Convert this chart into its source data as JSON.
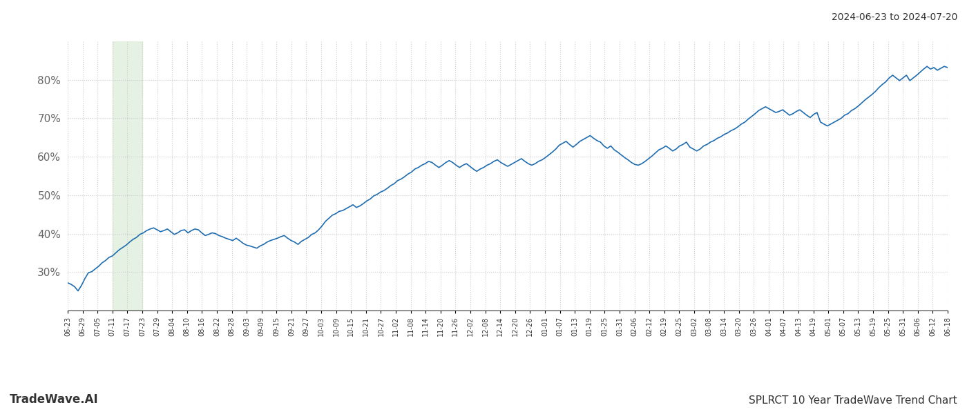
{
  "title_top_right": "2024-06-23 to 2024-07-20",
  "title_bottom_right": "SPLRCT 10 Year TradeWave Trend Chart",
  "title_bottom_left": "TradeWave.AI",
  "line_color": "#1f6cb0",
  "line_width": 1.2,
  "shading_color": "#d4e8d0",
  "shading_alpha": 0.6,
  "background_color": "#ffffff",
  "grid_color": "#cccccc",
  "grid_style": ":",
  "ylim": [
    20,
    90
  ],
  "yticks": [
    30,
    40,
    50,
    60,
    70,
    80
  ],
  "x_tick_labels": [
    "06-23",
    "06-29",
    "07-05",
    "07-11",
    "07-17",
    "07-23",
    "07-29",
    "08-04",
    "08-10",
    "08-16",
    "08-22",
    "08-28",
    "09-03",
    "09-09",
    "09-15",
    "09-21",
    "09-27",
    "10-03",
    "10-09",
    "10-15",
    "10-21",
    "10-27",
    "11-02",
    "11-08",
    "11-14",
    "11-20",
    "11-26",
    "12-02",
    "12-08",
    "12-14",
    "12-20",
    "12-26",
    "01-01",
    "01-07",
    "01-13",
    "01-19",
    "01-25",
    "01-31",
    "02-06",
    "02-12",
    "02-19",
    "02-25",
    "03-02",
    "03-08",
    "03-14",
    "03-20",
    "03-26",
    "04-01",
    "04-07",
    "04-13",
    "04-19",
    "05-01",
    "05-07",
    "05-13",
    "05-19",
    "05-25",
    "05-31",
    "06-06",
    "06-12",
    "06-18"
  ],
  "shading_start_label": "07-11",
  "shading_end_label": "07-23",
  "y_values": [
    27.2,
    26.8,
    26.2,
    25.1,
    26.5,
    28.3,
    29.8,
    30.1,
    30.8,
    31.5,
    32.4,
    33.0,
    33.8,
    34.2,
    35.0,
    35.8,
    36.4,
    37.0,
    37.8,
    38.5,
    39.0,
    39.8,
    40.2,
    40.8,
    41.2,
    41.5,
    41.0,
    40.5,
    40.8,
    41.2,
    40.5,
    39.8,
    40.2,
    40.8,
    41.0,
    40.2,
    40.8,
    41.2,
    41.0,
    40.2,
    39.5,
    39.8,
    40.2,
    40.0,
    39.5,
    39.2,
    38.8,
    38.5,
    38.2,
    38.8,
    38.2,
    37.5,
    37.0,
    36.8,
    36.5,
    36.2,
    36.8,
    37.2,
    37.8,
    38.2,
    38.5,
    38.8,
    39.2,
    39.5,
    38.8,
    38.2,
    37.8,
    37.2,
    38.0,
    38.5,
    39.0,
    39.8,
    40.2,
    41.0,
    42.0,
    43.2,
    44.0,
    44.8,
    45.2,
    45.8,
    46.0,
    46.5,
    47.0,
    47.5,
    46.8,
    47.2,
    47.8,
    48.5,
    49.0,
    49.8,
    50.2,
    50.8,
    51.2,
    51.8,
    52.5,
    53.0,
    53.8,
    54.2,
    54.8,
    55.5,
    56.0,
    56.8,
    57.2,
    57.8,
    58.2,
    58.8,
    58.5,
    57.8,
    57.2,
    57.8,
    58.5,
    59.0,
    58.5,
    57.8,
    57.2,
    57.8,
    58.2,
    57.5,
    56.8,
    56.2,
    56.8,
    57.2,
    57.8,
    58.2,
    58.8,
    59.2,
    58.5,
    58.0,
    57.5,
    58.0,
    58.5,
    59.0,
    59.5,
    58.8,
    58.2,
    57.8,
    58.2,
    58.8,
    59.2,
    59.8,
    60.5,
    61.2,
    62.0,
    63.0,
    63.5,
    64.0,
    63.2,
    62.5,
    63.2,
    64.0,
    64.5,
    65.0,
    65.5,
    64.8,
    64.2,
    63.8,
    62.8,
    62.2,
    62.8,
    61.8,
    61.2,
    60.5,
    59.8,
    59.2,
    58.5,
    58.0,
    57.8,
    58.2,
    58.8,
    59.5,
    60.2,
    61.0,
    61.8,
    62.2,
    62.8,
    62.2,
    61.5,
    62.0,
    62.8,
    63.2,
    63.8,
    62.5,
    62.0,
    61.5,
    62.0,
    62.8,
    63.2,
    63.8,
    64.2,
    64.8,
    65.2,
    65.8,
    66.2,
    66.8,
    67.2,
    67.8,
    68.5,
    69.0,
    69.8,
    70.5,
    71.2,
    72.0,
    72.5,
    73.0,
    72.5,
    72.0,
    71.5,
    71.8,
    72.2,
    71.5,
    70.8,
    71.2,
    71.8,
    72.2,
    71.5,
    70.8,
    70.2,
    71.0,
    71.5,
    69.0,
    68.5,
    68.0,
    68.5,
    69.0,
    69.5,
    70.0,
    70.8,
    71.2,
    72.0,
    72.5,
    73.2,
    74.0,
    74.8,
    75.5,
    76.2,
    77.0,
    78.0,
    78.8,
    79.5,
    80.5,
    81.2,
    80.5,
    79.8,
    80.5,
    81.2,
    79.8,
    80.5,
    81.2,
    82.0,
    82.8,
    83.5,
    82.8,
    83.2,
    82.5,
    83.0,
    83.5,
    83.2
  ]
}
